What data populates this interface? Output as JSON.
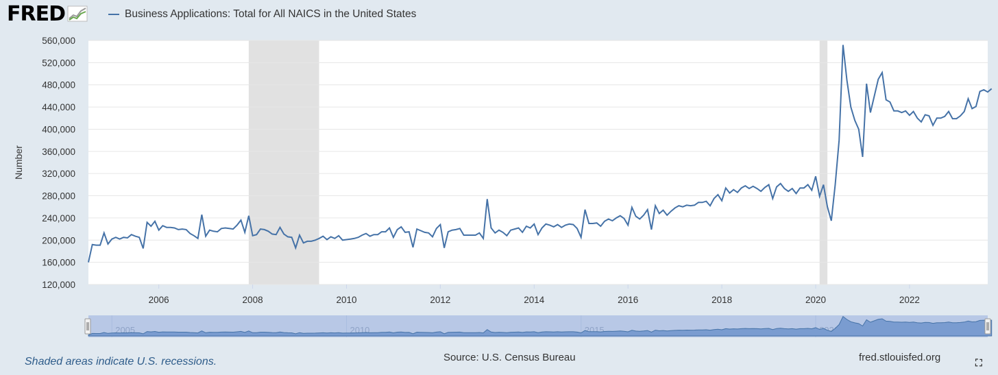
{
  "header": {
    "logo_text": "FRED",
    "legend_label": "Business Applications: Total for All NAICS in the United States",
    "line_color": "#4572a7"
  },
  "footer": {
    "recession_note": "Shaded areas indicate U.S. recessions.",
    "source": "Source: U.S. Census Bureau",
    "site": "fred.stlouisfed.org",
    "expand_icon": "fullscreen-icon"
  },
  "chart_data": {
    "type": "line",
    "title": "",
    "xlabel": "",
    "ylabel": "Number",
    "ylim": [
      120000,
      560000
    ],
    "xlim": [
      "2004-07",
      "2023-09"
    ],
    "y_ticks": [
      "120,000",
      "160,000",
      "200,000",
      "240,000",
      "280,000",
      "320,000",
      "360,000",
      "400,000",
      "440,000",
      "480,000",
      "520,000",
      "560,000"
    ],
    "x_ticks": [
      "2006",
      "2008",
      "2010",
      "2012",
      "2014",
      "2016",
      "2018",
      "2020",
      "2022"
    ],
    "navigator_labels": [
      "2005",
      "2010",
      "2015",
      "2020"
    ],
    "recessions": [
      [
        "2007-12",
        "2009-06"
      ],
      [
        "2020-02",
        "2020-04"
      ]
    ],
    "grid": true,
    "series": [
      {
        "name": "Business Applications: Total for All NAICS in the United States",
        "color": "#4572a7",
        "start": "2004-07",
        "values": [
          160000,
          192000,
          191000,
          191000,
          213000,
          193000,
          202000,
          205000,
          202000,
          205000,
          204000,
          210000,
          207000,
          205000,
          185000,
          232000,
          225000,
          234000,
          218000,
          226000,
          223000,
          223000,
          222000,
          219000,
          220000,
          219000,
          212000,
          208000,
          203000,
          246000,
          207000,
          218000,
          216000,
          215000,
          221000,
          222000,
          221000,
          220000,
          227000,
          236000,
          214000,
          244000,
          208000,
          210000,
          220000,
          219000,
          216000,
          211000,
          210000,
          223000,
          211000,
          206000,
          205000,
          186000,
          209000,
          195000,
          198000,
          198000,
          200000,
          203000,
          207000,
          201000,
          206000,
          203000,
          208000,
          200000,
          201000,
          202000,
          203000,
          205000,
          209000,
          212000,
          207000,
          210000,
          210000,
          215000,
          215000,
          222000,
          205000,
          219000,
          224000,
          214000,
          215000,
          187000,
          220000,
          217000,
          214000,
          213000,
          206000,
          221000,
          228000,
          186000,
          215000,
          218000,
          219000,
          221000,
          209000,
          209000,
          209000,
          209000,
          213000,
          203000,
          274000,
          222000,
          213000,
          218000,
          214000,
          208000,
          218000,
          220000,
          222000,
          214000,
          225000,
          222000,
          229000,
          210000,
          222000,
          229000,
          227000,
          224000,
          228000,
          223000,
          227000,
          229000,
          228000,
          221000,
          205000,
          255000,
          230000,
          230000,
          231000,
          225000,
          234000,
          238000,
          235000,
          240000,
          244000,
          239000,
          227000,
          259000,
          243000,
          238000,
          245000,
          255000,
          219000,
          262000,
          248000,
          254000,
          245000,
          252000,
          258000,
          262000,
          260000,
          263000,
          262000,
          263000,
          268000,
          268000,
          270000,
          262000,
          275000,
          282000,
          271000,
          294000,
          285000,
          291000,
          286000,
          294000,
          298000,
          293000,
          297000,
          293000,
          288000,
          295000,
          300000,
          275000,
          296000,
          302000,
          293000,
          288000,
          293000,
          284000,
          294000,
          294000,
          300000,
          290000,
          315000,
          279000,
          300000,
          260000,
          235000,
          300000,
          380000,
          552000,
          488000,
          440000,
          416000,
          400000,
          350000,
          482000,
          430000,
          460000,
          490000,
          502000,
          453000,
          449000,
          433000,
          433000,
          430000,
          433000,
          425000,
          432000,
          420000,
          413000,
          426000,
          424000,
          407000,
          420000,
          420000,
          423000,
          432000,
          419000,
          419000,
          424000,
          432000,
          455000,
          437000,
          441000,
          468000,
          471000,
          467000,
          473000
        ]
      }
    ]
  }
}
